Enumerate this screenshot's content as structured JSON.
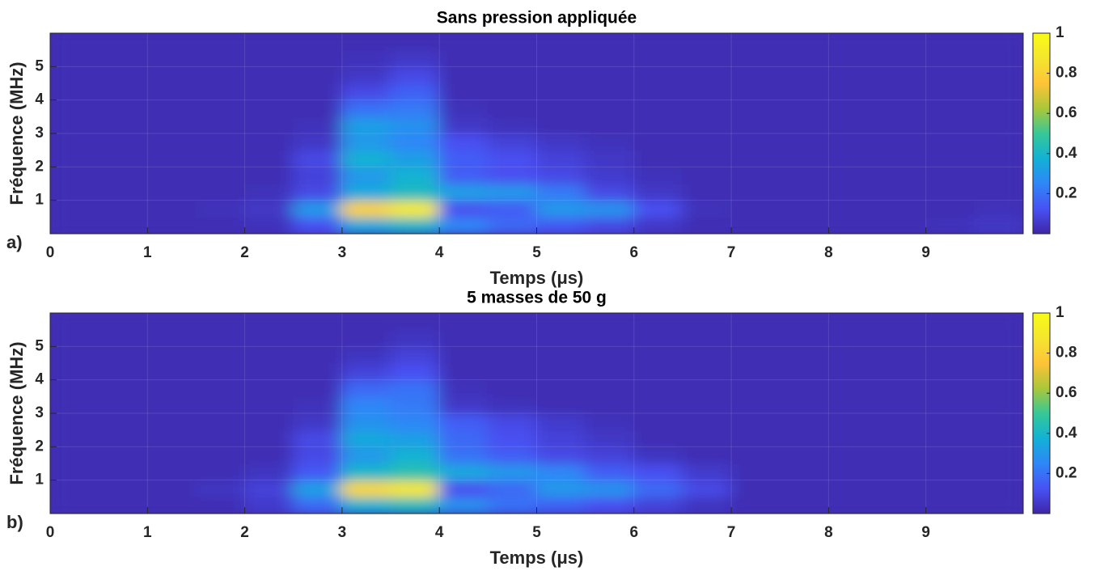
{
  "chart_data": [
    {
      "type": "heatmap",
      "title": "Sans pression appliquée",
      "panel_label": "a)",
      "xlabel": "Temps (μs)",
      "ylabel": "Fréquence (MHz)",
      "colormap": "parula",
      "grid": true,
      "xlim": [
        0,
        10
      ],
      "ylim": [
        0,
        6
      ],
      "xticks": [
        0,
        1,
        2,
        3,
        4,
        5,
        6,
        7,
        8,
        9
      ],
      "yticks": [
        1,
        2,
        3,
        4,
        5
      ],
      "clim": [
        0,
        1
      ],
      "cticks": [
        0.2,
        0.4,
        0.6,
        0.8,
        1
      ],
      "x": [
        0.25,
        0.75,
        1.25,
        1.75,
        2.25,
        2.75,
        3.25,
        3.75,
        4.25,
        4.75,
        5.25,
        5.75,
        6.25,
        6.75,
        7.25,
        7.75,
        8.25,
        8.75,
        9.25,
        9.75
      ],
      "y": [
        0.25,
        0.75,
        1.25,
        1.75,
        2.25,
        2.75,
        3.25,
        3.75,
        4.25,
        4.75,
        5.25,
        5.75
      ],
      "z": [
        [
          0.02,
          0.02,
          0.02,
          0.02,
          0.03,
          0.12,
          0.35,
          0.4,
          0.25,
          0.18,
          0.14,
          0.1,
          0.05,
          0.02,
          0.02,
          0.02,
          0.02,
          0.02,
          0.03,
          0.05
        ],
        [
          0.02,
          0.02,
          0.02,
          0.03,
          0.05,
          0.3,
          0.8,
          0.9,
          0.12,
          0.15,
          0.3,
          0.28,
          0.12,
          0.03,
          0.02,
          0.02,
          0.02,
          0.02,
          0.02,
          0.03
        ],
        [
          0.02,
          0.02,
          0.02,
          0.02,
          0.03,
          0.1,
          0.35,
          0.42,
          0.32,
          0.3,
          0.22,
          0.1,
          0.05,
          0.02,
          0.02,
          0.02,
          0.02,
          0.02,
          0.02,
          0.02
        ],
        [
          0.02,
          0.02,
          0.02,
          0.02,
          0.02,
          0.08,
          0.3,
          0.38,
          0.15,
          0.12,
          0.1,
          0.06,
          0.03,
          0.02,
          0.02,
          0.02,
          0.02,
          0.02,
          0.02,
          0.02
        ],
        [
          0.02,
          0.02,
          0.02,
          0.02,
          0.02,
          0.1,
          0.38,
          0.32,
          0.15,
          0.12,
          0.08,
          0.05,
          0.02,
          0.02,
          0.02,
          0.02,
          0.02,
          0.02,
          0.02,
          0.02
        ],
        [
          0.02,
          0.02,
          0.02,
          0.02,
          0.02,
          0.05,
          0.3,
          0.25,
          0.12,
          0.08,
          0.05,
          0.03,
          0.02,
          0.02,
          0.02,
          0.02,
          0.02,
          0.02,
          0.02,
          0.02
        ],
        [
          0.02,
          0.02,
          0.02,
          0.02,
          0.02,
          0.03,
          0.32,
          0.28,
          0.05,
          0.03,
          0.02,
          0.02,
          0.02,
          0.02,
          0.02,
          0.02,
          0.02,
          0.02,
          0.02,
          0.02
        ],
        [
          0.02,
          0.02,
          0.02,
          0.02,
          0.02,
          0.02,
          0.2,
          0.22,
          0.03,
          0.02,
          0.02,
          0.02,
          0.02,
          0.02,
          0.02,
          0.02,
          0.02,
          0.02,
          0.02,
          0.02
        ],
        [
          0.02,
          0.02,
          0.02,
          0.02,
          0.02,
          0.02,
          0.1,
          0.16,
          0.02,
          0.02,
          0.02,
          0.02,
          0.02,
          0.02,
          0.02,
          0.02,
          0.02,
          0.02,
          0.02,
          0.02
        ],
        [
          0.02,
          0.02,
          0.02,
          0.02,
          0.02,
          0.02,
          0.05,
          0.1,
          0.02,
          0.02,
          0.02,
          0.02,
          0.02,
          0.02,
          0.02,
          0.02,
          0.02,
          0.02,
          0.02,
          0.02
        ],
        [
          0.02,
          0.02,
          0.02,
          0.02,
          0.02,
          0.02,
          0.03,
          0.05,
          0.02,
          0.02,
          0.02,
          0.02,
          0.02,
          0.02,
          0.02,
          0.02,
          0.02,
          0.02,
          0.02,
          0.02
        ],
        [
          0.02,
          0.02,
          0.02,
          0.02,
          0.02,
          0.02,
          0.02,
          0.02,
          0.02,
          0.02,
          0.02,
          0.02,
          0.02,
          0.02,
          0.02,
          0.02,
          0.02,
          0.02,
          0.02,
          0.02
        ]
      ]
    },
    {
      "type": "heatmap",
      "title": "5 masses de 50 g",
      "panel_label": "b)",
      "xlabel": "Temps (μs)",
      "ylabel": "Fréquence (MHz)",
      "colormap": "parula",
      "grid": true,
      "xlim": [
        0,
        10
      ],
      "ylim": [
        0,
        6
      ],
      "xticks": [
        0,
        1,
        2,
        3,
        4,
        5,
        6,
        7,
        8,
        9
      ],
      "yticks": [
        1,
        2,
        3,
        4,
        5
      ],
      "clim": [
        0,
        1
      ],
      "cticks": [
        0.2,
        0.4,
        0.6,
        0.8,
        1
      ],
      "x": [
        0.25,
        0.75,
        1.25,
        1.75,
        2.25,
        2.75,
        3.25,
        3.75,
        4.25,
        4.75,
        5.25,
        5.75,
        6.25,
        6.75,
        7.25,
        7.75,
        8.25,
        8.75,
        9.25,
        9.75
      ],
      "y": [
        0.25,
        0.75,
        1.25,
        1.75,
        2.25,
        2.75,
        3.25,
        3.75,
        4.25,
        4.75,
        5.25,
        5.75
      ],
      "z": [
        [
          0.02,
          0.02,
          0.02,
          0.02,
          0.06,
          0.18,
          0.38,
          0.42,
          0.28,
          0.2,
          0.16,
          0.12,
          0.08,
          0.04,
          0.02,
          0.02,
          0.02,
          0.02,
          0.02,
          0.02
        ],
        [
          0.02,
          0.02,
          0.02,
          0.04,
          0.08,
          0.32,
          0.82,
          0.88,
          0.12,
          0.18,
          0.3,
          0.28,
          0.18,
          0.1,
          0.02,
          0.02,
          0.02,
          0.02,
          0.02,
          0.02
        ],
        [
          0.02,
          0.02,
          0.02,
          0.02,
          0.04,
          0.14,
          0.4,
          0.45,
          0.35,
          0.3,
          0.25,
          0.15,
          0.12,
          0.06,
          0.02,
          0.02,
          0.02,
          0.02,
          0.02,
          0.02
        ],
        [
          0.02,
          0.02,
          0.02,
          0.02,
          0.02,
          0.1,
          0.3,
          0.38,
          0.2,
          0.15,
          0.1,
          0.08,
          0.04,
          0.02,
          0.02,
          0.02,
          0.02,
          0.02,
          0.02,
          0.02
        ],
        [
          0.02,
          0.02,
          0.02,
          0.02,
          0.02,
          0.1,
          0.35,
          0.32,
          0.18,
          0.12,
          0.08,
          0.05,
          0.02,
          0.02,
          0.02,
          0.02,
          0.02,
          0.02,
          0.02,
          0.02
        ],
        [
          0.02,
          0.02,
          0.02,
          0.02,
          0.02,
          0.05,
          0.28,
          0.25,
          0.15,
          0.1,
          0.06,
          0.03,
          0.02,
          0.02,
          0.02,
          0.02,
          0.02,
          0.02,
          0.02,
          0.02
        ],
        [
          0.02,
          0.02,
          0.02,
          0.02,
          0.02,
          0.03,
          0.25,
          0.22,
          0.05,
          0.03,
          0.02,
          0.02,
          0.02,
          0.02,
          0.02,
          0.02,
          0.02,
          0.02,
          0.02,
          0.02
        ],
        [
          0.02,
          0.02,
          0.02,
          0.02,
          0.02,
          0.02,
          0.18,
          0.2,
          0.03,
          0.02,
          0.02,
          0.02,
          0.02,
          0.02,
          0.02,
          0.02,
          0.02,
          0.02,
          0.02,
          0.02
        ],
        [
          0.02,
          0.02,
          0.02,
          0.02,
          0.02,
          0.02,
          0.08,
          0.12,
          0.02,
          0.02,
          0.02,
          0.02,
          0.02,
          0.02,
          0.02,
          0.02,
          0.02,
          0.02,
          0.02,
          0.02
        ],
        [
          0.02,
          0.02,
          0.02,
          0.02,
          0.02,
          0.02,
          0.04,
          0.08,
          0.02,
          0.02,
          0.02,
          0.02,
          0.02,
          0.02,
          0.02,
          0.02,
          0.02,
          0.02,
          0.02,
          0.02
        ],
        [
          0.02,
          0.02,
          0.02,
          0.02,
          0.02,
          0.02,
          0.02,
          0.04,
          0.02,
          0.02,
          0.02,
          0.02,
          0.02,
          0.02,
          0.02,
          0.02,
          0.02,
          0.02,
          0.02,
          0.02
        ],
        [
          0.02,
          0.02,
          0.02,
          0.02,
          0.02,
          0.02,
          0.02,
          0.02,
          0.02,
          0.02,
          0.02,
          0.02,
          0.02,
          0.02,
          0.02,
          0.02,
          0.02,
          0.02,
          0.02,
          0.02
        ]
      ]
    }
  ]
}
